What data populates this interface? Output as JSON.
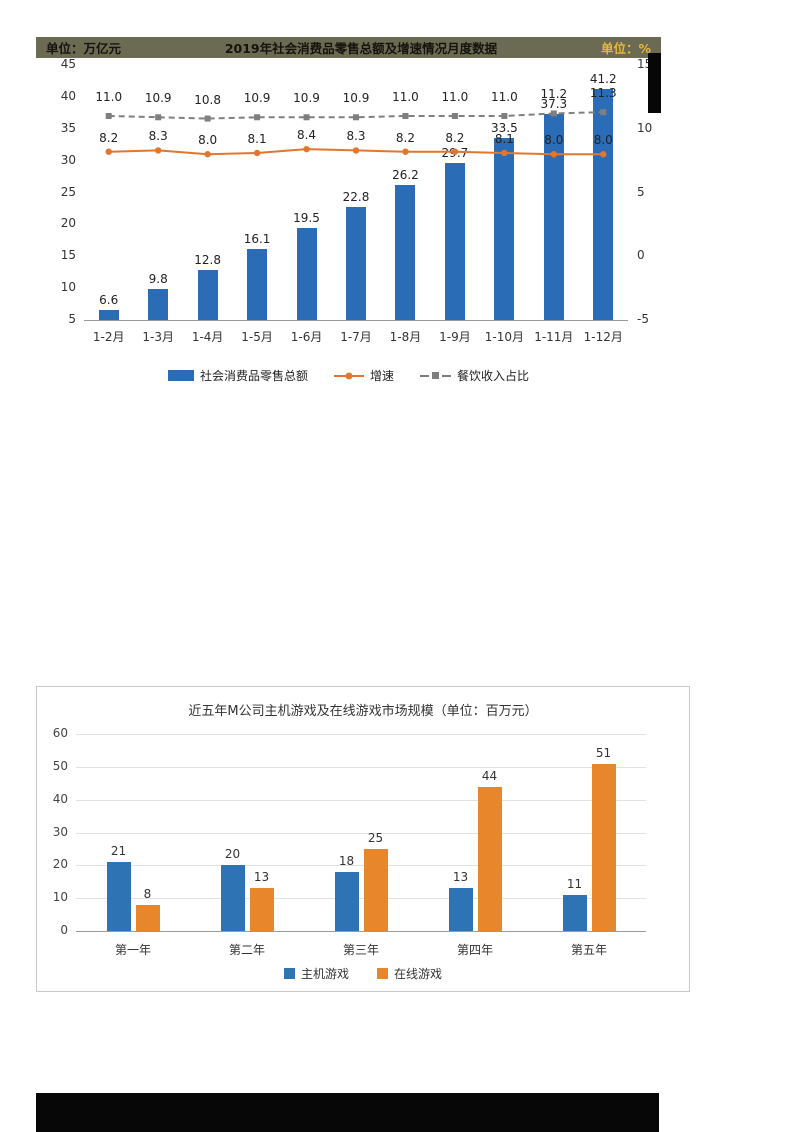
{
  "chart1_header": {
    "left_unit": "单位：万亿元",
    "right_unit": "单位：%"
  },
  "chart_data": [
    {
      "type": "bar",
      "subtype": "combo-bar-line",
      "title": "2019年社会消费品零售总额及增速情况月度数据",
      "categories": [
        "1-2月",
        "1-3月",
        "1-4月",
        "1-5月",
        "1-6月",
        "1-7月",
        "1-8月",
        "1-9月",
        "1-10月",
        "1-11月",
        "1-12月"
      ],
      "series": [
        {
          "name": "社会消费品零售总额",
          "type": "bar",
          "axis": "left",
          "color": "#2a6cb5",
          "values": [
            6.6,
            9.8,
            12.8,
            16.1,
            19.5,
            22.8,
            26.2,
            29.7,
            33.5,
            37.3,
            41.2
          ]
        },
        {
          "name": "增速",
          "type": "line",
          "axis": "right",
          "color": "#e1762c",
          "values": [
            8.2,
            8.3,
            8.0,
            8.1,
            8.4,
            8.3,
            8.2,
            8.2,
            8.1,
            8.0,
            8.0
          ]
        },
        {
          "name": "餐饮收入占比",
          "type": "dashed-line",
          "axis": "right",
          "color": "#7f7f7f",
          "values": [
            11.0,
            10.9,
            10.8,
            10.9,
            10.9,
            10.9,
            11.0,
            11.0,
            11.0,
            11.2,
            11.3
          ]
        }
      ],
      "left_axis": {
        "unit": "万亿元",
        "ticks": [
          45,
          40,
          35,
          30,
          25,
          20,
          15,
          10,
          5
        ],
        "min": 5,
        "max": 45
      },
      "right_axis": {
        "unit": "%",
        "ticks": [
          15,
          10,
          5,
          0,
          -5
        ],
        "min": -5,
        "max": 15
      },
      "legend_position": "bottom",
      "grid": false
    },
    {
      "type": "bar",
      "subtype": "grouped-bar",
      "title": "近五年M公司主机游戏及在线游戏市场规模（单位：百万元）",
      "categories": [
        "第一年",
        "第二年",
        "第三年",
        "第四年",
        "第五年"
      ],
      "series": [
        {
          "name": "主机游戏",
          "color": "#2e74b5",
          "values": [
            21,
            20,
            18,
            13,
            11
          ]
        },
        {
          "name": "在线游戏",
          "color": "#e8862c",
          "values": [
            8,
            13,
            25,
            44,
            51
          ]
        }
      ],
      "y_axis": {
        "ticks": [
          0,
          10,
          20,
          30,
          40,
          50,
          60
        ],
        "min": 0,
        "max": 60
      },
      "legend_position": "bottom",
      "grid": true
    }
  ]
}
